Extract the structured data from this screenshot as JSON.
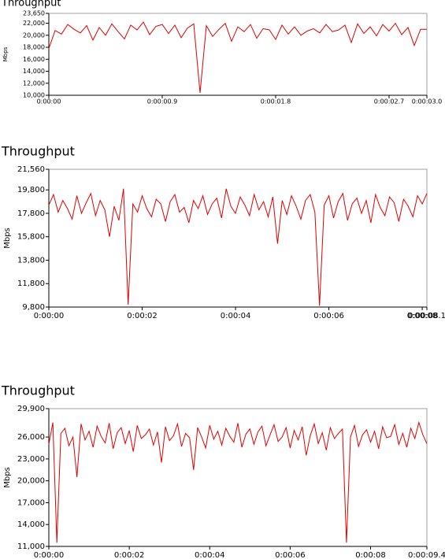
{
  "chart_data": [
    {
      "type": "line",
      "title": "Throughput",
      "y_label": "Mbps",
      "color": "#e00000",
      "x": [
        0,
        0.05,
        0.1,
        0.15,
        0.2,
        0.25,
        0.3,
        0.35,
        0.4,
        0.45,
        0.5,
        0.55,
        0.6,
        0.65,
        0.7,
        0.75,
        0.8,
        0.85,
        0.9,
        0.95,
        1,
        1.05,
        1.1,
        1.15,
        1.2,
        1.25,
        1.3,
        1.35,
        1.4,
        1.45,
        1.5,
        1.55,
        1.6,
        1.65,
        1.7,
        1.75,
        1.8,
        1.85,
        1.9,
        1.95,
        2,
        2.05,
        2.1,
        2.15,
        2.2,
        2.25,
        2.3,
        2.35,
        2.4,
        2.45,
        2.5,
        2.55,
        2.6,
        2.65,
        2.7,
        2.75,
        2.8,
        2.85,
        2.9,
        2.95,
        3
      ],
      "values": [
        17800,
        20800,
        20200,
        21800,
        21000,
        20400,
        21600,
        19200,
        21300,
        20000,
        21900,
        20600,
        19400,
        21700,
        20900,
        22200,
        20100,
        21500,
        21800,
        20300,
        21700,
        19600,
        21200,
        21900,
        10400,
        21600,
        19800,
        21000,
        22000,
        19000,
        21400,
        20600,
        21800,
        19500,
        21100,
        20900,
        19300,
        21700,
        20200,
        21400,
        20000,
        20700,
        21100,
        20400,
        21800,
        20600,
        20900,
        21700,
        18800,
        21900,
        20300,
        21400,
        19900,
        21800,
        20700,
        22000,
        20100,
        21300,
        18300,
        21000,
        21000
      ],
      "xlim": [
        0,
        3.0
      ],
      "ylim": [
        10000,
        23650
      ],
      "xticks": [
        {
          "value": 0,
          "label": "0:00:00"
        },
        {
          "value": 0.9,
          "label": "0:00:00.9"
        },
        {
          "value": 1.8,
          "label": "0:00:01.8"
        },
        {
          "value": 2.7,
          "label": "0:00:02.7"
        },
        {
          "value": 3.0,
          "label": "0:00:03.0"
        }
      ],
      "yticks": [
        {
          "value": 10000,
          "label": "10,000"
        },
        {
          "value": 12000,
          "label": "12,000"
        },
        {
          "value": 14000,
          "label": "14,000"
        },
        {
          "value": 16000,
          "label": "16,000"
        },
        {
          "value": 18000,
          "label": "18,000"
        },
        {
          "value": 20000,
          "label": "20,000"
        },
        {
          "value": 22000,
          "label": "22,000"
        },
        {
          "value": 23650,
          "label": "23,650"
        }
      ]
    },
    {
      "type": "line",
      "title": "Throughput",
      "y_label": "Mbps",
      "color": "#e00000",
      "x": [
        0,
        0.1,
        0.2,
        0.3,
        0.4,
        0.5,
        0.6,
        0.7,
        0.8,
        0.9,
        1,
        1.1,
        1.2,
        1.3,
        1.4,
        1.5,
        1.6,
        1.7,
        1.8,
        1.9,
        2,
        2.1,
        2.2,
        2.3,
        2.4,
        2.5,
        2.6,
        2.7,
        2.8,
        2.9,
        3,
        3.1,
        3.2,
        3.3,
        3.4,
        3.5,
        3.6,
        3.7,
        3.8,
        3.9,
        4,
        4.1,
        4.2,
        4.3,
        4.4,
        4.5,
        4.6,
        4.7,
        4.8,
        4.9,
        5,
        5.1,
        5.2,
        5.3,
        5.4,
        5.5,
        5.6,
        5.7,
        5.8,
        5.9,
        6,
        6.1,
        6.2,
        6.3,
        6.4,
        6.5,
        6.6,
        6.7,
        6.8,
        6.9,
        7,
        7.1,
        7.2,
        7.3,
        7.4,
        7.5,
        7.6,
        7.7,
        7.8,
        7.9,
        8,
        8.1
      ],
      "values": [
        18500,
        19400,
        17900,
        18900,
        18200,
        17300,
        19300,
        17800,
        18700,
        19500,
        17600,
        18900,
        18100,
        15800,
        18400,
        17200,
        19900,
        10000,
        18600,
        17900,
        19300,
        18200,
        17500,
        19000,
        18600,
        17100,
        18800,
        19400,
        17900,
        18300,
        17000,
        18900,
        18200,
        19300,
        17700,
        18600,
        19100,
        17400,
        19900,
        18400,
        17800,
        19200,
        18500,
        17600,
        19400,
        18100,
        18800,
        17500,
        19200,
        15200,
        18900,
        17700,
        19300,
        18400,
        17300,
        18900,
        19400,
        17900,
        9900,
        18500,
        19300,
        17400,
        18800,
        19500,
        17200,
        18600,
        19100,
        17800,
        18900,
        17000,
        19400,
        18300,
        17600,
        19200,
        18700,
        17100,
        19000,
        18400,
        17500,
        19300,
        18600,
        19500
      ],
      "xlim": [
        0,
        8.1
      ],
      "ylim": [
        9800,
        21560
      ],
      "xticks": [
        {
          "value": 0,
          "label": "0:00:00"
        },
        {
          "value": 2,
          "label": "0:00:02"
        },
        {
          "value": 4,
          "label": "0:00:04"
        },
        {
          "value": 6,
          "label": "0:00:06"
        },
        {
          "value": 8,
          "label": "0:00:08"
        },
        {
          "value": 8.1,
          "label": "0:00:08.1"
        }
      ],
      "yticks": [
        {
          "value": 9800,
          "label": "9,800"
        },
        {
          "value": 11800,
          "label": "11,800"
        },
        {
          "value": 13800,
          "label": "13,800"
        },
        {
          "value": 15800,
          "label": "15,800"
        },
        {
          "value": 17800,
          "label": "17,800"
        },
        {
          "value": 19800,
          "label": "19,800"
        },
        {
          "value": 21560,
          "label": "21,560"
        }
      ]
    },
    {
      "type": "line",
      "title": "Throughput",
      "y_label": "Mbps",
      "color": "#e00000",
      "x": [
        0,
        0.1,
        0.2,
        0.3,
        0.4,
        0.5,
        0.6,
        0.7,
        0.8,
        0.9,
        1,
        1.1,
        1.2,
        1.3,
        1.4,
        1.5,
        1.6,
        1.7,
        1.8,
        1.9,
        2,
        2.1,
        2.2,
        2.3,
        2.4,
        2.5,
        2.6,
        2.7,
        2.8,
        2.9,
        3,
        3.1,
        3.2,
        3.3,
        3.4,
        3.5,
        3.6,
        3.7,
        3.8,
        3.9,
        4,
        4.1,
        4.2,
        4.3,
        4.4,
        4.5,
        4.6,
        4.7,
        4.8,
        4.9,
        5,
        5.1,
        5.2,
        5.3,
        5.4,
        5.5,
        5.6,
        5.7,
        5.8,
        5.9,
        6,
        6.1,
        6.2,
        6.3,
        6.4,
        6.5,
        6.6,
        6.7,
        6.8,
        6.9,
        7,
        7.1,
        7.2,
        7.3,
        7.4,
        7.5,
        7.6,
        7.7,
        7.8,
        7.9,
        8,
        8.1,
        8.2,
        8.3,
        8.4,
        8.5,
        8.6,
        8.7,
        8.8,
        8.9,
        9,
        9.1,
        9.2,
        9.3,
        9.4
      ],
      "values": [
        25000,
        28000,
        11500,
        26500,
        27200,
        24800,
        26000,
        20500,
        27800,
        25600,
        26800,
        24600,
        27500,
        26100,
        25200,
        27900,
        24400,
        26600,
        27300,
        25100,
        26900,
        24000,
        27600,
        25800,
        26300,
        27100,
        24900,
        26700,
        22500,
        27400,
        25500,
        26200,
        27800,
        24700,
        26500,
        25900,
        21500,
        27300,
        26000,
        24500,
        27600,
        25700,
        26800,
        24900,
        27200,
        26100,
        25300,
        27900,
        24600,
        26400,
        27100,
        25000,
        26700,
        27500,
        24800,
        26300,
        27700,
        25400,
        26000,
        27300,
        24500,
        26900,
        25600,
        27400,
        23500,
        26200,
        27800,
        25100,
        26600,
        24200,
        27300,
        25800,
        26500,
        27100,
        11500,
        26000,
        27600,
        24700,
        26300,
        27000,
        25300,
        26800,
        24400,
        27400,
        25900,
        26100,
        27700,
        25000,
        26500,
        24600,
        27200,
        25800,
        28000,
        26300,
        25100
      ],
      "xlim": [
        0,
        9.4
      ],
      "ylim": [
        11000,
        29900
      ],
      "xticks": [
        {
          "value": 0,
          "label": "0:00:00"
        },
        {
          "value": 2,
          "label": "0:00:02"
        },
        {
          "value": 4,
          "label": "0:00:04"
        },
        {
          "value": 6,
          "label": "0:00:06"
        },
        {
          "value": 8,
          "label": "0:00:08"
        },
        {
          "value": 9.4,
          "label": "0:00:09.4"
        }
      ],
      "yticks": [
        {
          "value": 11000,
          "label": "11,000"
        },
        {
          "value": 14000,
          "label": "14,000"
        },
        {
          "value": 17000,
          "label": "17,000"
        },
        {
          "value": 20000,
          "label": "20,000"
        },
        {
          "value": 23000,
          "label": "23,000"
        },
        {
          "value": 26000,
          "label": "26,000"
        },
        {
          "value": 29900,
          "label": "29,900"
        }
      ]
    }
  ]
}
